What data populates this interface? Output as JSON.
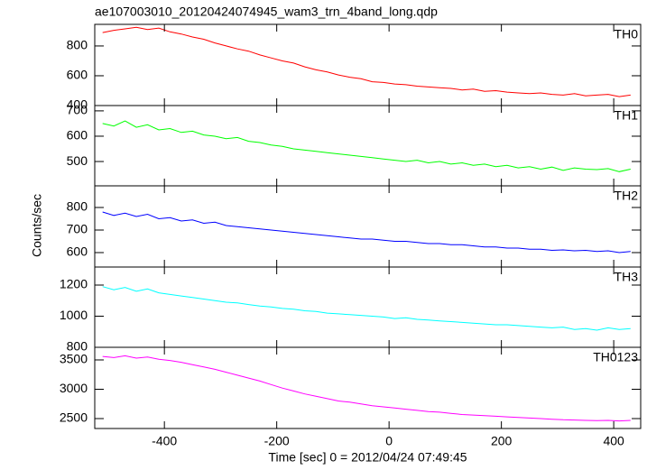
{
  "title": "ae107003010_20120424074945_wam3_trn_4band_long.qdp",
  "ylabel": "Counts/sec",
  "chart_data": [
    {
      "type": "line",
      "xlim": [
        -524,
        448
      ],
      "xticks": [
        -400,
        -200,
        0,
        200,
        400
      ],
      "ylim": [
        400,
        945
      ],
      "yticks": [
        400,
        600,
        800
      ],
      "x": [
        -510,
        -490,
        -470,
        -450,
        -430,
        -410,
        -390,
        -370,
        -350,
        -330,
        -310,
        -290,
        -270,
        -250,
        -230,
        -210,
        -190,
        -170,
        -150,
        -130,
        -110,
        -90,
        -70,
        -50,
        -30,
        -10,
        10,
        30,
        50,
        70,
        90,
        110,
        130,
        150,
        170,
        190,
        210,
        230,
        250,
        270,
        290,
        310,
        330,
        350,
        370,
        390,
        410,
        430
      ],
      "series": [
        {
          "name": "TH0",
          "color": "#ff0000",
          "values": [
            890,
            905,
            915,
            925,
            910,
            920,
            895,
            880,
            860,
            845,
            820,
            800,
            780,
            765,
            740,
            720,
            700,
            685,
            660,
            640,
            625,
            605,
            590,
            580,
            560,
            555,
            545,
            540,
            530,
            525,
            520,
            515,
            505,
            510,
            495,
            500,
            490,
            485,
            480,
            485,
            475,
            470,
            480,
            465,
            470,
            475,
            460,
            470
          ]
        }
      ]
    },
    {
      "type": "line",
      "xlim": [
        -524,
        448
      ],
      "xticks": [
        -400,
        -200,
        0,
        200,
        400
      ],
      "ylim": [
        404,
        721
      ],
      "yticks": [
        500,
        600,
        700
      ],
      "x": [
        -510,
        -490,
        -470,
        -450,
        -430,
        -410,
        -390,
        -370,
        -350,
        -330,
        -310,
        -290,
        -270,
        -250,
        -230,
        -210,
        -190,
        -170,
        -150,
        -130,
        -110,
        -90,
        -70,
        -50,
        -30,
        -10,
        10,
        30,
        50,
        70,
        90,
        110,
        130,
        150,
        170,
        190,
        210,
        230,
        250,
        270,
        290,
        310,
        330,
        350,
        370,
        390,
        410,
        430
      ],
      "series": [
        {
          "name": "TH1",
          "color": "#00ff00",
          "values": [
            650,
            640,
            660,
            635,
            645,
            625,
            630,
            615,
            620,
            605,
            600,
            590,
            595,
            580,
            575,
            565,
            560,
            550,
            545,
            540,
            535,
            530,
            525,
            520,
            515,
            510,
            505,
            500,
            505,
            495,
            500,
            490,
            495,
            485,
            490,
            480,
            485,
            475,
            480,
            470,
            478,
            465,
            475,
            470,
            468,
            472,
            460,
            470
          ]
        }
      ]
    },
    {
      "type": "line",
      "xlim": [
        -524,
        448
      ],
      "xticks": [
        -400,
        -200,
        0,
        200,
        400
      ],
      "ylim": [
        536,
        896
      ],
      "yticks": [
        600,
        700,
        800
      ],
      "x": [
        -510,
        -490,
        -470,
        -450,
        -430,
        -410,
        -390,
        -370,
        -350,
        -330,
        -310,
        -290,
        -270,
        -250,
        -230,
        -210,
        -190,
        -170,
        -150,
        -130,
        -110,
        -90,
        -70,
        -50,
        -30,
        -10,
        10,
        30,
        50,
        70,
        90,
        110,
        130,
        150,
        170,
        190,
        210,
        230,
        250,
        270,
        290,
        310,
        330,
        350,
        370,
        390,
        410,
        430
      ],
      "series": [
        {
          "name": "TH2",
          "color": "#0000ff",
          "values": [
            780,
            765,
            775,
            760,
            770,
            750,
            755,
            740,
            745,
            730,
            735,
            720,
            715,
            710,
            705,
            700,
            695,
            690,
            685,
            680,
            675,
            670,
            665,
            660,
            660,
            655,
            650,
            650,
            645,
            640,
            640,
            635,
            635,
            630,
            625,
            625,
            620,
            620,
            615,
            615,
            610,
            612,
            608,
            610,
            605,
            608,
            600,
            605
          ]
        }
      ]
    },
    {
      "type": "line",
      "xlim": [
        -524,
        448
      ],
      "xticks": [
        -400,
        -200,
        0,
        200,
        400
      ],
      "ylim": [
        800,
        1316
      ],
      "yticks": [
        800,
        1000,
        1200
      ],
      "x": [
        -510,
        -490,
        -470,
        -450,
        -430,
        -410,
        -390,
        -370,
        -350,
        -330,
        -310,
        -290,
        -270,
        -250,
        -230,
        -210,
        -190,
        -170,
        -150,
        -130,
        -110,
        -90,
        -70,
        -50,
        -30,
        -10,
        10,
        30,
        50,
        70,
        90,
        110,
        130,
        150,
        170,
        190,
        210,
        230,
        250,
        270,
        290,
        310,
        330,
        350,
        370,
        390,
        410,
        430
      ],
      "series": [
        {
          "name": "TH3",
          "color": "#00ffff",
          "values": [
            1190,
            1170,
            1185,
            1160,
            1175,
            1150,
            1140,
            1130,
            1120,
            1110,
            1100,
            1090,
            1085,
            1075,
            1065,
            1060,
            1050,
            1045,
            1035,
            1030,
            1020,
            1015,
            1010,
            1005,
            1000,
            995,
            985,
            990,
            980,
            975,
            970,
            965,
            960,
            955,
            950,
            945,
            945,
            940,
            935,
            930,
            925,
            930,
            915,
            920,
            910,
            925,
            915,
            920
          ]
        }
      ]
    },
    {
      "type": "line",
      "xlim": [
        -524,
        448
      ],
      "xticks": [
        -400,
        -200,
        0,
        200,
        400
      ],
      "ylim": [
        2331,
        3715
      ],
      "yticks": [
        2500,
        3000,
        3500
      ],
      "xlabel": "Time [sec] 0 = 2012/04/24 07:49:45",
      "x": [
        -510,
        -490,
        -470,
        -450,
        -430,
        -410,
        -390,
        -370,
        -350,
        -330,
        -310,
        -290,
        -270,
        -250,
        -230,
        -210,
        -190,
        -170,
        -150,
        -130,
        -110,
        -90,
        -70,
        -50,
        -30,
        -10,
        10,
        30,
        50,
        70,
        90,
        110,
        130,
        150,
        170,
        190,
        210,
        230,
        250,
        270,
        290,
        310,
        330,
        350,
        370,
        390,
        410,
        430
      ],
      "series": [
        {
          "name": "TH0123",
          "color": "#ff00ff",
          "values": [
            3560,
            3540,
            3570,
            3530,
            3550,
            3510,
            3490,
            3460,
            3420,
            3380,
            3340,
            3290,
            3240,
            3190,
            3140,
            3080,
            3020,
            2970,
            2920,
            2880,
            2840,
            2800,
            2780,
            2750,
            2720,
            2700,
            2680,
            2660,
            2640,
            2620,
            2610,
            2590,
            2570,
            2560,
            2550,
            2540,
            2530,
            2520,
            2510,
            2500,
            2490,
            2480,
            2475,
            2470,
            2465,
            2470,
            2460,
            2470
          ]
        }
      ]
    }
  ]
}
